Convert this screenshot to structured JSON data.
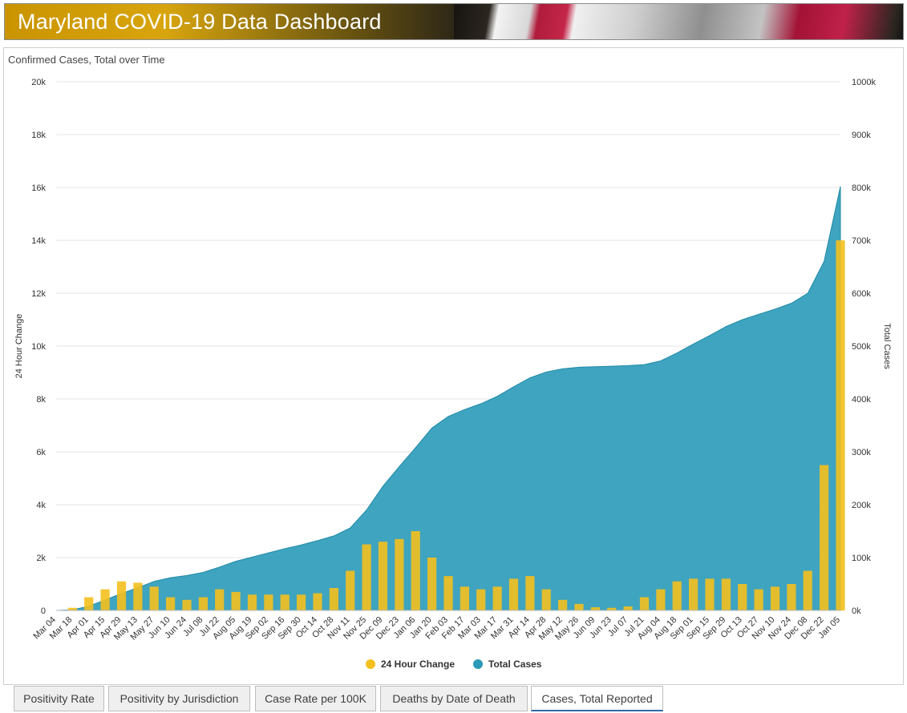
{
  "header": {
    "title": "Maryland COVID-19 Data Dashboard"
  },
  "tabs": [
    {
      "label": "Positivity Rate",
      "active": false
    },
    {
      "label": "Positivity by Jurisdiction",
      "active": false
    },
    {
      "label": "Case Rate per 100K",
      "active": false
    },
    {
      "label": "Deaths by Date of Death",
      "active": false
    },
    {
      "label": "Cases, Total Reported",
      "active": true
    }
  ],
  "colors": {
    "area": "#2a9ab8",
    "bars": "#f4c01e",
    "grid": "#e4e4e4"
  },
  "chart_data": {
    "type": "bar+area",
    "title": "Confirmed Cases, Total over Time",
    "ylabel_left": "24 Hour Change",
    "ylabel_right": "Total Cases",
    "ylim_left": [
      0,
      20000
    ],
    "ylim_right": [
      0,
      1000000
    ],
    "left_ticks": [
      "0",
      "2k",
      "4k",
      "6k",
      "8k",
      "10k",
      "12k",
      "14k",
      "16k",
      "18k",
      "20k"
    ],
    "right_ticks": [
      "0k",
      "100k",
      "200k",
      "300k",
      "400k",
      "500k",
      "600k",
      "700k",
      "800k",
      "900k",
      "1000k"
    ],
    "x_labels": [
      "Mar 04",
      "Mar 18",
      "Apr 01",
      "Apr 15",
      "Apr 29",
      "May 13",
      "May 27",
      "Jun 10",
      "Jun 24",
      "Jul 08",
      "Jul 22",
      "Aug 05",
      "Aug 19",
      "Sep 02",
      "Sep 16",
      "Sep 30",
      "Oct 14",
      "Oct 28",
      "Nov 11",
      "Nov 25",
      "Dec 09",
      "Dec 23",
      "Jan 06",
      "Jan 20",
      "Feb 03",
      "Feb 17",
      "Mar 03",
      "Mar 17",
      "Mar 31",
      "Apr 14",
      "Apr 28",
      "May 12",
      "May 26",
      "Jun 09",
      "Jun 23",
      "Jul 07",
      "Jul 21",
      "Aug 04",
      "Aug 18",
      "Sep 01",
      "Sep 15",
      "Sep 29",
      "Oct 13",
      "Oct 27",
      "Nov 10",
      "Nov 24",
      "Dec 08",
      "Dec 22",
      "Jan 05"
    ],
    "grid": true,
    "legend_position": "bottom",
    "series": [
      {
        "name": "24 Hour Change",
        "type": "bar",
        "values_at_x_labels": [
          0,
          100,
          500,
          800,
          1100,
          1050,
          900,
          500,
          400,
          500,
          800,
          700,
          600,
          600,
          600,
          600,
          650,
          850,
          1500,
          2500,
          2600,
          2700,
          3000,
          2000,
          1300,
          900,
          800,
          900,
          1200,
          1300,
          800,
          400,
          250,
          120,
          100,
          150,
          500,
          800,
          1100,
          1200,
          1200,
          1200,
          1000,
          800,
          900,
          1000,
          1500,
          5500,
          14000
        ]
      },
      {
        "name": "Total Cases",
        "type": "area",
        "values_at_x_labels": [
          0,
          1000,
          8000,
          20000,
          32000,
          43000,
          55000,
          62000,
          66000,
          72000,
          82000,
          93000,
          101000,
          109000,
          117000,
          124000,
          132000,
          141000,
          156000,
          190000,
          235000,
          272000,
          308000,
          345000,
          367000,
          380000,
          391000,
          405000,
          423000,
          440000,
          451000,
          457000,
          460000,
          461000,
          462000,
          463000,
          465000,
          472000,
          487000,
          504000,
          520000,
          537000,
          550000,
          560000,
          570000,
          581000,
          600000,
          660000,
          802000
        ]
      }
    ]
  }
}
